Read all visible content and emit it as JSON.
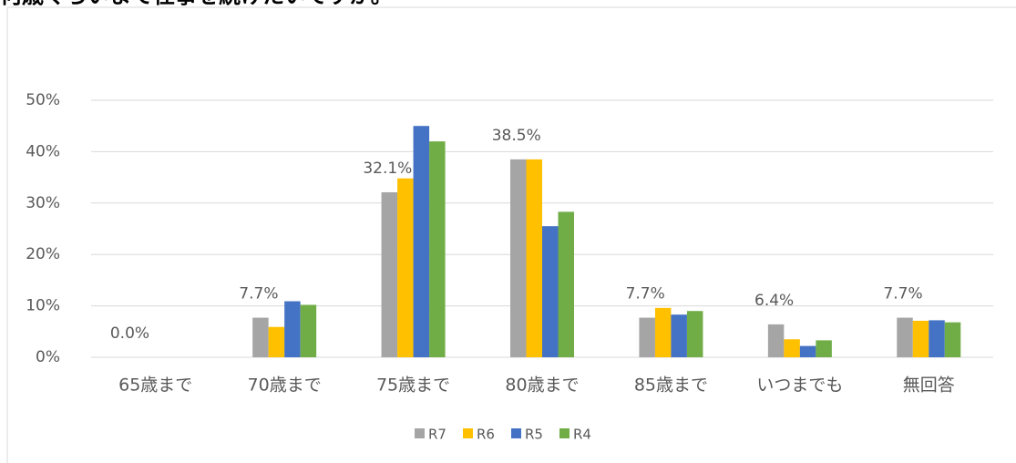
{
  "chart_data": {
    "type": "bar",
    "title": "何歳ぐらいまで仕事を続けたいですか。",
    "categories": [
      "65歳まで",
      "70歳まで",
      "75歳まで",
      "80歳まで",
      "85歳まで",
      "いつまでも",
      "無回答"
    ],
    "series": [
      {
        "name": "R7",
        "color": "#a5a5a5",
        "values": [
          0,
          7.7,
          32.1,
          38.5,
          7.7,
          6.4,
          7.7
        ],
        "value_labels": [
          "0.0%",
          "7.7%",
          "32.1%",
          "38.5%",
          "7.7%",
          "6.4%",
          "7.7%"
        ]
      },
      {
        "name": "R6",
        "color": "#ffc000",
        "values": [
          0,
          5.9,
          34.8,
          38.5,
          9.6,
          3.5,
          7.1
        ]
      },
      {
        "name": "R5",
        "color": "#4472c4",
        "values": [
          0,
          10.9,
          45.0,
          25.5,
          8.3,
          2.2,
          7.2
        ]
      },
      {
        "name": "R4",
        "color": "#70ad47",
        "values": [
          0,
          10.2,
          42.0,
          28.3,
          9.0,
          3.3,
          6.8
        ]
      }
    ],
    "ylim": [
      0,
      50
    ],
    "yticks": [
      {
        "value": 0,
        "label": "0%"
      },
      {
        "value": 10,
        "label": "10%"
      },
      {
        "value": 20,
        "label": "20%"
      },
      {
        "value": 30,
        "label": "30%"
      },
      {
        "value": 40,
        "label": "40%"
      },
      {
        "value": 50,
        "label": "50%"
      }
    ],
    "grid": true,
    "legend": "bottom"
  }
}
